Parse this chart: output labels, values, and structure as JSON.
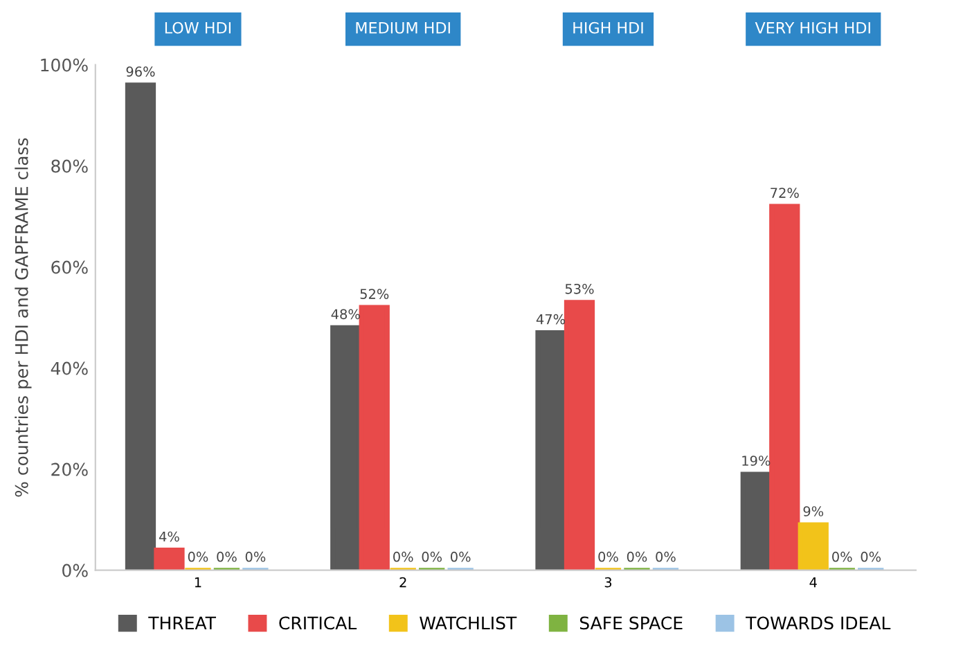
{
  "chart_data": {
    "type": "bar",
    "ylabel": "% countries per HDI and GAPFRAME class",
    "categories": [
      "1",
      "2",
      "3",
      "4"
    ],
    "series": [
      {
        "name": "THREAT",
        "color": "#5a5a5a",
        "values": [
          96,
          48,
          47,
          19
        ],
        "value_labels": [
          "96%",
          "48%",
          "47%",
          "19%"
        ]
      },
      {
        "name": "CRITICAL",
        "color": "#e84a4a",
        "values": [
          4,
          52,
          53,
          72
        ],
        "value_labels": [
          "4%",
          "52%",
          "53%",
          "72%"
        ]
      },
      {
        "name": "WATCHLIST",
        "color": "#f2c31a",
        "values": [
          0,
          0,
          0,
          9
        ],
        "value_labels": [
          "0%",
          "0%",
          "0%",
          "9%"
        ]
      },
      {
        "name": "SAFE SPACE",
        "color": "#7fb341",
        "values": [
          0,
          0,
          0,
          0
        ],
        "value_labels": [
          "0%",
          "0%",
          "0%",
          "0%"
        ]
      },
      {
        "name": "TOWARDS IDEAL",
        "color": "#9cc3e5",
        "values": [
          0,
          0,
          0,
          0
        ],
        "value_labels": [
          "0%",
          "0%",
          "0%",
          "0%"
        ]
      }
    ],
    "annotations": [
      "LOW HDI",
      "MEDIUM HDI",
      "HIGH HDI",
      "VERY HIGH HDI"
    ],
    "ylim": [
      0,
      100
    ],
    "yticks": [
      {
        "value": 0,
        "label": "0%"
      },
      {
        "value": 20,
        "label": "20%"
      },
      {
        "value": 40,
        "label": "40%"
      },
      {
        "value": 60,
        "label": "60%"
      },
      {
        "value": 80,
        "label": "80%"
      },
      {
        "value": 100,
        "label": "100%"
      }
    ],
    "legend": "bottom",
    "grid": false
  }
}
